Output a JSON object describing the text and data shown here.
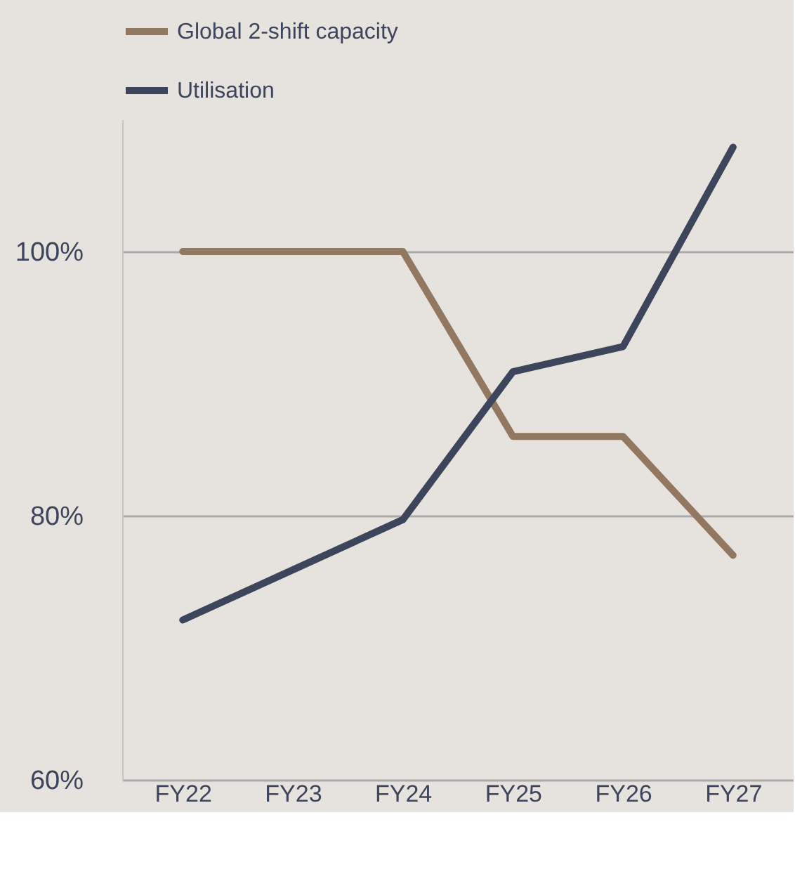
{
  "chart_data": {
    "type": "line",
    "categories": [
      "FY22",
      "FY23",
      "FY24",
      "FY25",
      "FY26",
      "FY27"
    ],
    "series": [
      {
        "name": "Global 2-shift capacity",
        "color": "#937860",
        "values": [
          100,
          100,
          100,
          86,
          86,
          77
        ]
      },
      {
        "name": "Utilisation",
        "color": "#3d455c",
        "values": [
          72.1,
          75.9,
          79.7,
          90.9,
          92.8,
          107.9
        ]
      }
    ],
    "ylim": [
      60,
      110
    ],
    "yticks": [
      {
        "value": 60,
        "label": "60%"
      },
      {
        "value": 80,
        "label": "80%"
      },
      {
        "value": 100,
        "label": "100%"
      }
    ],
    "grid": "y",
    "legend": "top",
    "marker": "none",
    "line_style": "solid"
  }
}
